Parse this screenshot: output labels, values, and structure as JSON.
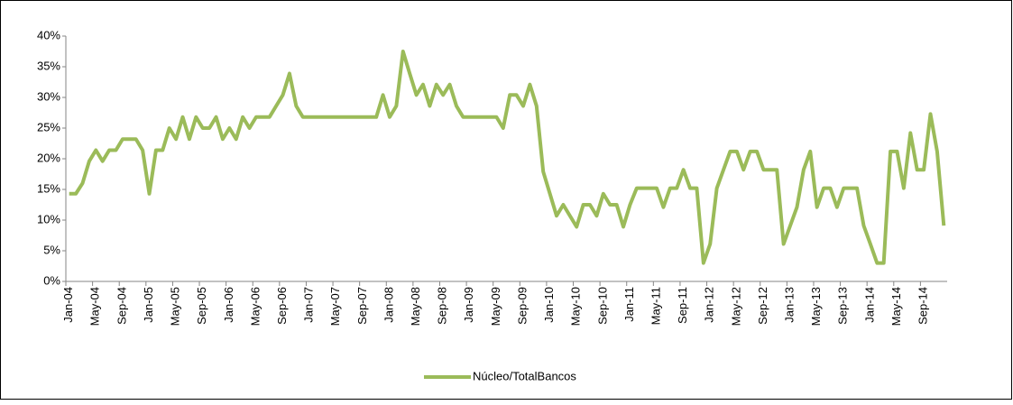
{
  "chart_data": {
    "type": "line",
    "categories": [
      "Jan-04",
      null,
      null,
      null,
      "May-04",
      null,
      null,
      null,
      "Sep-04",
      null,
      null,
      null,
      "Jan-05",
      null,
      null,
      null,
      "May-05",
      null,
      null,
      null,
      "Sep-05",
      null,
      null,
      null,
      "Jan-06",
      null,
      null,
      null,
      "May-06",
      null,
      null,
      null,
      "Sep-06",
      null,
      null,
      null,
      "Jan-07",
      null,
      null,
      null,
      "May-07",
      null,
      null,
      null,
      "Sep-07",
      null,
      null,
      null,
      "Jan-08",
      null,
      null,
      null,
      "May-08",
      null,
      null,
      null,
      "Sep-08",
      null,
      null,
      null,
      "Jan-09",
      null,
      null,
      null,
      "May-09",
      null,
      null,
      null,
      "Sep-09",
      null,
      null,
      null,
      "Jan-10",
      null,
      null,
      null,
      "May-10",
      null,
      null,
      null,
      "Sep-10",
      null,
      null,
      null,
      "Jan-11",
      null,
      null,
      null,
      "May-11",
      null,
      null,
      null,
      "Sep-11",
      null,
      null,
      null,
      "Jan-12",
      null,
      null,
      null,
      "May-12",
      null,
      null,
      null,
      "Sep-12",
      null,
      null,
      null,
      "Jan-13",
      null,
      null,
      null,
      "May-13",
      null,
      null,
      null,
      "Sep-13",
      null,
      null,
      null,
      "Jan-14",
      null,
      null,
      null,
      "May-14",
      null,
      null,
      null,
      "Sep-14",
      null,
      null,
      null
    ],
    "series": [
      {
        "name": "Núcleo/TotalBancos",
        "color": "#9bbb59",
        "values": [
          14.3,
          14.3,
          16,
          19.6,
          21.4,
          19.6,
          21.4,
          21.4,
          23.2,
          23.2,
          23.2,
          21.4,
          14.3,
          21.4,
          21.4,
          25,
          23.2,
          26.8,
          23.2,
          26.8,
          25,
          25,
          26.8,
          23.2,
          25,
          23.2,
          26.8,
          25,
          26.8,
          26.8,
          26.8,
          28.6,
          30.4,
          33.9,
          28.6,
          26.8,
          26.8,
          26.8,
          26.8,
          26.8,
          26.8,
          26.8,
          26.8,
          26.8,
          26.8,
          26.8,
          26.8,
          30.4,
          26.8,
          28.6,
          37.5,
          33.9,
          30.4,
          32.1,
          28.6,
          32.1,
          30.4,
          32.1,
          28.6,
          26.8,
          26.8,
          26.8,
          26.8,
          26.8,
          26.8,
          25,
          30.4,
          30.4,
          28.6,
          32.1,
          28.6,
          17.9,
          14.3,
          10.7,
          12.5,
          10.7,
          8.9,
          12.5,
          12.5,
          10.7,
          14.3,
          12.5,
          12.5,
          8.9,
          12.5,
          15.2,
          15.2,
          15.2,
          15.2,
          12.1,
          15.2,
          15.2,
          18.2,
          15.2,
          15.2,
          3,
          6.1,
          15.2,
          18.2,
          21.2,
          21.2,
          18.2,
          21.2,
          21.2,
          18.2,
          18.2,
          18.2,
          6.1,
          9.1,
          12.1,
          18.2,
          21.2,
          12.1,
          15.2,
          15.2,
          12.1,
          15.2,
          15.2,
          15.2,
          9.1,
          6.1,
          3,
          3,
          21.2,
          21.2,
          15.2,
          24.2,
          18.2,
          18.2,
          27.3,
          21.2,
          9.1
        ]
      }
    ],
    "ylim": [
      0,
      40
    ],
    "yticks": [
      {
        "value": 0,
        "label": "0%"
      },
      {
        "value": 5,
        "label": "5%"
      },
      {
        "value": 10,
        "label": "10%"
      },
      {
        "value": 15,
        "label": "15%"
      },
      {
        "value": 20,
        "label": "20%"
      },
      {
        "value": 25,
        "label": "25%"
      },
      {
        "value": 30,
        "label": "30%"
      },
      {
        "value": 35,
        "label": "35%"
      },
      {
        "value": 40,
        "label": "40%"
      }
    ],
    "legend": "bottom"
  }
}
